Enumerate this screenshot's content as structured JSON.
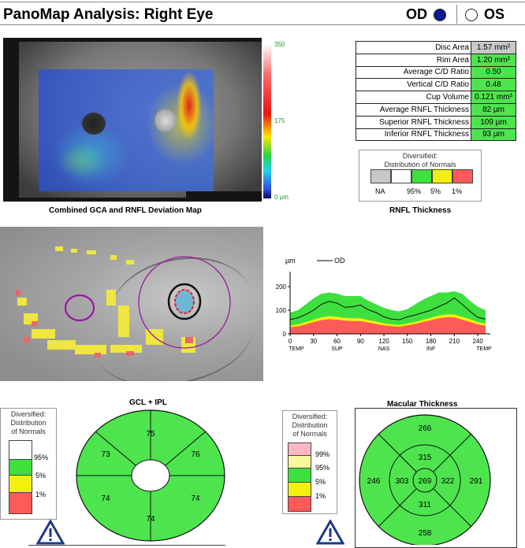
{
  "header": {
    "title": "PanoMap Analysis: Right Eye",
    "od_label": "OD",
    "os_label": "OS"
  },
  "deviation_map": {
    "caption": "Combined GCA and RNFL Deviation Map",
    "scale_max": "350",
    "scale_mid": "175",
    "scale_min": "0 µm"
  },
  "stats": {
    "rows": [
      {
        "label": "Disc Area",
        "value": "1.57 mm²",
        "color": "#c8c8c8"
      },
      {
        "label": "Rim Area",
        "value": "1.20 mm²",
        "color": "#4ee44e"
      },
      {
        "label": "Average C/D Ratio",
        "value": "0.50",
        "color": "#4ee44e"
      },
      {
        "label": "Vertical C/D Ratio",
        "value": "0.48",
        "color": "#4ee44e"
      },
      {
        "label": "Cup Volume",
        "value": "0.121 mm³",
        "color": "#4ee44e"
      },
      {
        "label": "Average RNFL Thickness",
        "value": "82 µm",
        "color": "#4ee44e"
      },
      {
        "label": "Superior RNFL Thickness",
        "value": "109 µm",
        "color": "#4ee44e"
      },
      {
        "label": "Inferior RNFL Thickness",
        "value": "93 µm",
        "color": "#4ee44e"
      }
    ]
  },
  "rnfl_legend": {
    "title_line1": "Diversified:",
    "title_line2": "Distribution of Normals",
    "labels": [
      "NA",
      "95%",
      "5%",
      "1%"
    ],
    "caption": "RNFL Thickness"
  },
  "tsnit_plot": {
    "y_unit": "µm",
    "legend_label": "OD"
  },
  "chart_data": {
    "type": "line",
    "xlabel": "",
    "ylabel": "µm",
    "x_ticks": [
      0,
      30,
      60,
      90,
      120,
      150,
      180,
      210,
      240
    ],
    "x_sublabels": [
      "TEMP",
      "SUP",
      "NAS",
      "INF",
      "TEMP"
    ],
    "y_ticks": [
      0,
      100,
      200
    ],
    "ylim": [
      0,
      250
    ],
    "xlim": [
      0,
      256
    ],
    "series": [
      {
        "name": "OD",
        "x": [
          0,
          10,
          20,
          30,
          40,
          50,
          60,
          70,
          80,
          90,
          100,
          110,
          120,
          130,
          140,
          150,
          160,
          170,
          180,
          190,
          200,
          210,
          220,
          230,
          240,
          250
        ],
        "values": [
          60,
          68,
          82,
          100,
          125,
          138,
          130,
          112,
          115,
          122,
          102,
          90,
          72,
          62,
          60,
          72,
          80,
          90,
          100,
          115,
          130,
          152,
          125,
          95,
          70,
          62
        ]
      }
    ],
    "bands": [
      {
        "level": "95%",
        "color": "#3ee03e",
        "upper": [
          90,
          100,
          125,
          150,
          170,
          175,
          170,
          160,
          160,
          160,
          140,
          125,
          110,
          100,
          95,
          105,
          125,
          145,
          160,
          175,
          175,
          180,
          170,
          140,
          115,
          100
        ]
      },
      {
        "level": "5%",
        "color": "#f4f00e",
        "upper": [
          35,
          40,
          50,
          60,
          70,
          75,
          72,
          68,
          66,
          66,
          58,
          52,
          44,
          40,
          38,
          44,
          50,
          60,
          68,
          78,
          82,
          82,
          72,
          62,
          50,
          42
        ]
      },
      {
        "level": "1%",
        "color": "#ff5a5a",
        "upper": [
          28,
          32,
          40,
          50,
          58,
          62,
          60,
          56,
          54,
          54,
          48,
          42,
          36,
          32,
          30,
          36,
          42,
          50,
          58,
          66,
          70,
          70,
          60,
          50,
          40,
          34
        ]
      }
    ]
  },
  "gcl_ipl": {
    "title": "GCL + IPL",
    "sectors": {
      "top": "75",
      "upper_right": "76",
      "lower_right": "74",
      "bottom": "74",
      "lower_left": "74",
      "upper_left": "73"
    },
    "legend": {
      "title_line1": "Diversified:",
      "title_line2": "Distribution",
      "title_line3": "of Normals",
      "labels": [
        "95%",
        "5%",
        "1%"
      ]
    }
  },
  "macular": {
    "title": "Macular Thickness",
    "center": "269",
    "inner": {
      "top": "315",
      "right": "322",
      "bottom": "311",
      "left": "303"
    },
    "outer": {
      "top": "266",
      "right": "291",
      "bottom": "258",
      "left": "246"
    },
    "legend": {
      "title_line1": "Diversified:",
      "title_line2": "Distribution",
      "title_line3": "of Normals",
      "labels": [
        "99%",
        "95%",
        "5%",
        "1%"
      ]
    }
  }
}
